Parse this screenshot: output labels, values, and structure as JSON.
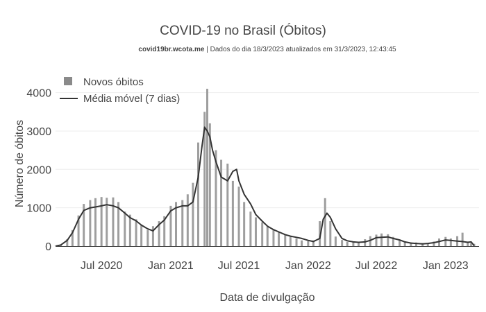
{
  "chart_data": {
    "type": "bar+line",
    "title": "COVID-19 no Brasil (Óbitos)",
    "subtitle_source": "covid19br.wcota.me",
    "subtitle_rest": " | Dados do dia 18/3/2023 atualizados em 31/3/2023, 12:43:45",
    "xlabel": "Data de divulgação",
    "ylabel": "Número de óbitos",
    "ylim": [
      0,
      4300
    ],
    "yticks": [
      0,
      1000,
      2000,
      3000,
      4000
    ],
    "xlim": [
      "2020-03-01",
      "2023-03-31"
    ],
    "xticks": [
      {
        "date": "2020-07-01",
        "label": "Jul 2020"
      },
      {
        "date": "2021-01-01",
        "label": "Jan 2021"
      },
      {
        "date": "2021-07-01",
        "label": "Jul 2021"
      },
      {
        "date": "2022-01-01",
        "label": "Jan 2022"
      },
      {
        "date": "2022-07-01",
        "label": "Jul 2022"
      },
      {
        "date": "2023-01-01",
        "label": "Jan 2023"
      }
    ],
    "legend_position": "top-left",
    "grid": true,
    "colors": {
      "bars": "#9e9e9e",
      "line": "#333333",
      "grid": "#eeeeee",
      "axis": "#444444"
    },
    "series": [
      {
        "name": "Novos óbitos",
        "kind": "bar",
        "x": [
          "2020-03-01",
          "2020-03-15",
          "2020-04-01",
          "2020-04-15",
          "2020-05-01",
          "2020-05-15",
          "2020-06-01",
          "2020-06-15",
          "2020-07-01",
          "2020-07-15",
          "2020-08-01",
          "2020-08-15",
          "2020-09-01",
          "2020-09-15",
          "2020-10-01",
          "2020-10-15",
          "2020-11-01",
          "2020-11-15",
          "2020-12-01",
          "2020-12-15",
          "2021-01-01",
          "2021-01-15",
          "2021-02-01",
          "2021-02-15",
          "2021-03-01",
          "2021-03-15",
          "2021-04-01",
          "2021-04-08",
          "2021-04-15",
          "2021-05-01",
          "2021-05-15",
          "2021-06-01",
          "2021-06-15",
          "2021-07-01",
          "2021-07-15",
          "2021-08-01",
          "2021-08-15",
          "2021-09-01",
          "2021-09-15",
          "2021-10-01",
          "2021-10-15",
          "2021-11-01",
          "2021-11-15",
          "2021-12-01",
          "2021-12-15",
          "2022-01-01",
          "2022-01-15",
          "2022-02-01",
          "2022-02-15",
          "2022-03-01",
          "2022-03-15",
          "2022-04-01",
          "2022-04-15",
          "2022-05-01",
          "2022-05-15",
          "2022-06-01",
          "2022-06-15",
          "2022-07-01",
          "2022-07-15",
          "2022-08-01",
          "2022-08-15",
          "2022-09-01",
          "2022-09-15",
          "2022-10-01",
          "2022-10-15",
          "2022-11-01",
          "2022-11-15",
          "2022-12-01",
          "2022-12-15",
          "2023-01-01",
          "2023-01-15",
          "2023-02-01",
          "2023-02-15",
          "2023-03-01",
          "2023-03-10",
          "2023-03-18"
        ],
        "y": [
          5,
          40,
          180,
          420,
          800,
          1100,
          1200,
          1250,
          1280,
          1260,
          1270,
          1150,
          900,
          820,
          700,
          550,
          420,
          520,
          650,
          780,
          1050,
          1150,
          1200,
          1350,
          1650,
          2700,
          3500,
          4100,
          3200,
          2500,
          2250,
          2150,
          1700,
          1550,
          1150,
          900,
          750,
          620,
          520,
          430,
          380,
          300,
          250,
          200,
          150,
          130,
          150,
          650,
          1250,
          650,
          250,
          160,
          110,
          100,
          110,
          180,
          260,
          300,
          330,
          310,
          240,
          160,
          120,
          100,
          95,
          80,
          75,
          120,
          200,
          240,
          200,
          260,
          350,
          120,
          80,
          60
        ]
      },
      {
        "name": "Média móvel (7 dias)",
        "kind": "line",
        "x": [
          "2020-03-01",
          "2020-03-15",
          "2020-04-01",
          "2020-04-15",
          "2020-05-01",
          "2020-05-15",
          "2020-06-01",
          "2020-06-15",
          "2020-07-01",
          "2020-07-15",
          "2020-08-01",
          "2020-08-15",
          "2020-09-01",
          "2020-09-15",
          "2020-10-01",
          "2020-10-15",
          "2020-11-01",
          "2020-11-15",
          "2020-12-01",
          "2020-12-15",
          "2021-01-01",
          "2021-01-15",
          "2021-02-01",
          "2021-02-15",
          "2021-03-01",
          "2021-03-15",
          "2021-03-25",
          "2021-04-01",
          "2021-04-08",
          "2021-04-15",
          "2021-04-22",
          "2021-05-01",
          "2021-05-15",
          "2021-06-01",
          "2021-06-15",
          "2021-06-25",
          "2021-07-01",
          "2021-07-15",
          "2021-08-01",
          "2021-08-15",
          "2021-09-01",
          "2021-09-15",
          "2021-10-01",
          "2021-10-15",
          "2021-11-01",
          "2021-11-15",
          "2021-12-01",
          "2021-12-15",
          "2022-01-01",
          "2022-01-15",
          "2022-02-01",
          "2022-02-10",
          "2022-02-20",
          "2022-03-01",
          "2022-03-15",
          "2022-04-01",
          "2022-04-15",
          "2022-05-01",
          "2022-05-15",
          "2022-06-01",
          "2022-06-15",
          "2022-07-01",
          "2022-07-15",
          "2022-08-01",
          "2022-08-15",
          "2022-09-01",
          "2022-09-15",
          "2022-10-01",
          "2022-10-15",
          "2022-11-01",
          "2022-11-15",
          "2022-12-01",
          "2022-12-15",
          "2023-01-01",
          "2023-01-15",
          "2023-02-01",
          "2023-02-15",
          "2023-03-01",
          "2023-03-10",
          "2023-03-18"
        ],
        "y": [
          0,
          30,
          150,
          350,
          700,
          930,
          1000,
          1020,
          1050,
          1080,
          1050,
          1000,
          860,
          740,
          660,
          550,
          450,
          400,
          560,
          680,
          920,
          1000,
          1050,
          1050,
          1150,
          1800,
          2600,
          3100,
          3000,
          2850,
          2500,
          2200,
          1800,
          1700,
          1950,
          2000,
          1700,
          1350,
          1100,
          820,
          650,
          520,
          430,
          370,
          300,
          260,
          230,
          200,
          150,
          120,
          200,
          700,
          860,
          750,
          450,
          200,
          140,
          110,
          100,
          110,
          150,
          220,
          230,
          240,
          200,
          160,
          110,
          80,
          70,
          60,
          70,
          90,
          120,
          160,
          150,
          130,
          120,
          100,
          110,
          10
        ]
      }
    ]
  }
}
